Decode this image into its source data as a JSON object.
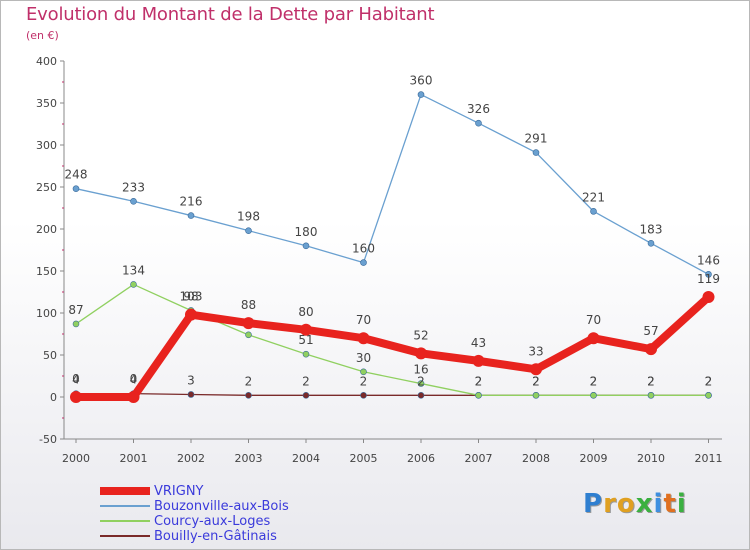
{
  "header": {
    "title": "Evolution du Montant de la Dette par Habitant",
    "subtitle": "(en €)"
  },
  "logo": {
    "text": "Proxiti",
    "letters": [
      {
        "ch": "P",
        "color": "#2f7fd0"
      },
      {
        "ch": "r",
        "color": "#e0a020"
      },
      {
        "ch": "o",
        "color": "#e0a020"
      },
      {
        "ch": "x",
        "color": "#3ab040"
      },
      {
        "ch": "i",
        "color": "#3f8fe0"
      },
      {
        "ch": "t",
        "color": "#e07020"
      },
      {
        "ch": "i",
        "color": "#3ab040"
      }
    ]
  },
  "chart_data": {
    "type": "line",
    "title": "Evolution du Montant de la Dette par Habitant",
    "subtitle": "(en €)",
    "xlabel": "",
    "ylabel": "",
    "categories": [
      "2000",
      "2001",
      "2002",
      "2003",
      "2004",
      "2005",
      "2006",
      "2007",
      "2008",
      "2009",
      "2010",
      "2011"
    ],
    "ylim": [
      -50,
      400
    ],
    "yticks": [
      -50,
      0,
      50,
      100,
      150,
      200,
      250,
      300,
      350,
      400
    ],
    "grid": false,
    "legend_position": "bottom-left",
    "series": [
      {
        "name": "VRIGNY",
        "color": "#e8231e",
        "values": [
          0,
          0,
          98,
          88,
          80,
          70,
          52,
          43,
          33,
          70,
          57,
          119
        ],
        "labels": [
          "0",
          "0",
          "98",
          "88",
          "80",
          "70",
          "52",
          "43",
          "33",
          "70",
          "57",
          "119"
        ]
      },
      {
        "name": "Bouzonville-aux-Bois",
        "color": "#6aa0d0",
        "values": [
          248,
          233,
          216,
          198,
          180,
          160,
          360,
          326,
          291,
          221,
          183,
          146
        ],
        "labels": [
          "248",
          "233",
          "216",
          "198",
          "180",
          "160",
          "360",
          "326",
          "291",
          "221",
          "183",
          "146"
        ]
      },
      {
        "name": "Courcy-aux-Loges",
        "color": "#90d060",
        "values": [
          87,
          134,
          103,
          74,
          51,
          30,
          16,
          2,
          2,
          2,
          2,
          2
        ],
        "labels": [
          "87",
          "134",
          "103",
          "",
          "51",
          "30",
          "16",
          "2",
          "2",
          "2",
          "2",
          "2"
        ]
      },
      {
        "name": "Bouilly-en-Gâtinais",
        "color": "#7a2a2a",
        "values": [
          4,
          4,
          3,
          2,
          2,
          2,
          2,
          2,
          2,
          2,
          2,
          2
        ],
        "labels": [
          "4",
          "4",
          "3",
          "2",
          "2",
          "2",
          "2",
          "2",
          "2",
          "2",
          "2",
          "2"
        ]
      }
    ]
  }
}
